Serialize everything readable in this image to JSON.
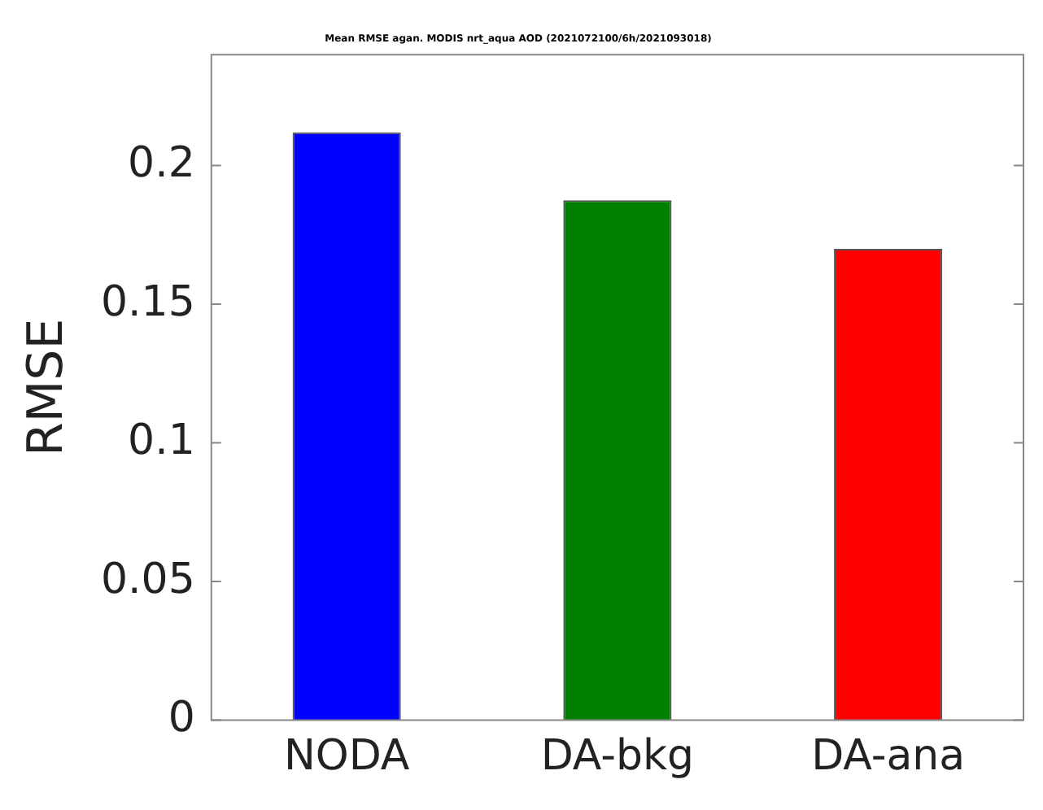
{
  "chart_data": {
    "type": "bar",
    "title": "Mean RMSE agan. MODIS nrt_aqua AOD (2021072100/6h/2021093018)",
    "ylabel": "RMSE",
    "categories": [
      "NODA",
      "DA-bkg",
      "DA-ana"
    ],
    "values": [
      0.212,
      0.1875,
      0.17
    ],
    "colors": [
      "#0000ff",
      "#008000",
      "#ff0000"
    ],
    "ylim": [
      0,
      0.24
    ],
    "yticks": [
      0,
      0.05,
      0.1,
      0.15,
      0.2
    ],
    "grid": false,
    "legend": false
  }
}
